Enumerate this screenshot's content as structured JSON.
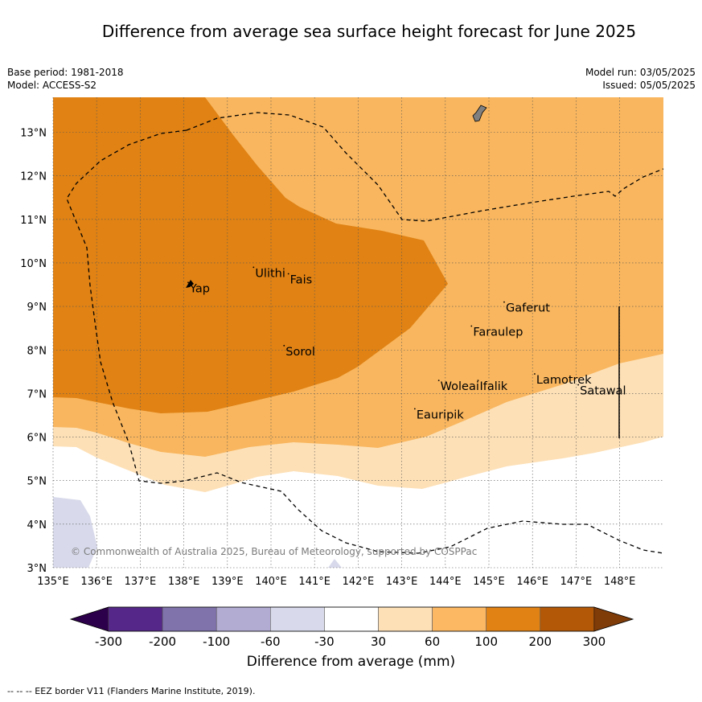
{
  "title": "Difference from average sea surface height forecast for June 2025",
  "meta": {
    "base_period": "Base period: 1981-2018",
    "model": "Model: ACCESS-S2",
    "model_run": "Model run: 03/05/2025",
    "issued": "Issued: 05/05/2025"
  },
  "map": {
    "lon_range": [
      135,
      149
    ],
    "lat_range": [
      3,
      13.8
    ],
    "lon_ticks": [
      "135°E",
      "136°E",
      "137°E",
      "138°E",
      "139°E",
      "140°E",
      "141°E",
      "142°E",
      "143°E",
      "144°E",
      "145°E",
      "146°E",
      "147°E",
      "148°E"
    ],
    "lat_ticks": [
      "3°N",
      "4°N",
      "5°N",
      "6°N",
      "7°N",
      "8°N",
      "9°N",
      "10°N",
      "11°N",
      "12°N",
      "13°N"
    ],
    "places": [
      {
        "name": "Yap",
        "lon": 138.1,
        "lat": 9.55
      },
      {
        "name": "Ulithi",
        "lon": 139.6,
        "lat": 9.9
      },
      {
        "name": "Fais",
        "lon": 140.4,
        "lat": 9.75
      },
      {
        "name": "Sorol",
        "lon": 140.3,
        "lat": 8.1
      },
      {
        "name": "Gaferut",
        "lon": 145.35,
        "lat": 9.1
      },
      {
        "name": "Faraulep",
        "lon": 144.6,
        "lat": 8.55
      },
      {
        "name": "Woleai",
        "lon": 143.85,
        "lat": 7.3
      },
      {
        "name": "Ifalik",
        "lon": 144.75,
        "lat": 7.3
      },
      {
        "name": "Lamotrek",
        "lon": 146.05,
        "lat": 7.45
      },
      {
        "name": "Satawal",
        "lon": 147.05,
        "lat": 7.2
      },
      {
        "name": "Eauripik",
        "lon": 143.3,
        "lat": 6.65
      }
    ],
    "copyright": "© Commonwealth of Australia 2025, Bureau of Meteorology, supported by COSPPac",
    "colors": {
      "c_30_60": "#fde0b6",
      "c_60_100": "#f9b65e",
      "c_100_200": "#e08214",
      "c_neg_60_30": "#d8daeb",
      "eez": "#000000"
    }
  },
  "colorbar": {
    "labels": [
      "-300",
      "-200",
      "-100",
      "-60",
      "-30",
      "30",
      "60",
      "100",
      "200",
      "300"
    ],
    "colors": [
      "#2d004b",
      "#542788",
      "#8073ac",
      "#b2abd2",
      "#d8daeb",
      "#ffffff",
      "#fee0b6",
      "#fdb863",
      "#e08214",
      "#b35806",
      "#7f3b08"
    ],
    "title": "Difference from average (mm)"
  },
  "footnote": "--  --  -- EEZ border V11 (Flanders Marine Institute, 2019)."
}
